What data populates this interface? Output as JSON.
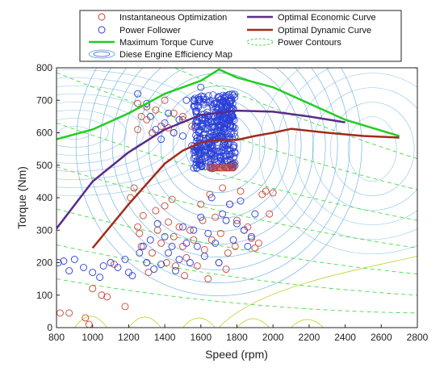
{
  "chart_data": {
    "type": "scatter",
    "xlabel": "Speed (rpm)",
    "ylabel": "Torque (Nm)",
    "xlim": [
      800,
      2800
    ],
    "ylim": [
      0,
      800
    ],
    "xticks": [
      800,
      1000,
      1200,
      1400,
      1600,
      1800,
      2000,
      2200,
      2400,
      2600,
      2800
    ],
    "yticks": [
      0,
      100,
      200,
      300,
      400,
      500,
      600,
      700,
      800
    ],
    "grid": false,
    "legend_position": "top",
    "colors": {
      "instantaneous_optimization": "#cc4433",
      "power_follower": "#2a3fd6",
      "maximum_torque": "#22cc22",
      "optimal_economic": "#5a2a8a",
      "optimal_dynamic": "#a32a1a",
      "power_contours": "#44dd44",
      "efficiency_map": "#4a9fd8",
      "efficiency_map_low": "#c8d030"
    },
    "legend": [
      {
        "id": "inst",
        "label": "Instantaneous Optimization",
        "kind": "marker",
        "color_key": "instantaneous_optimization"
      },
      {
        "id": "econ",
        "label": "Optimal Economic Curve",
        "kind": "line",
        "color_key": "optimal_economic"
      },
      {
        "id": "pf",
        "label": "Power Follower",
        "kind": "marker",
        "color_key": "power_follower"
      },
      {
        "id": "dyn",
        "label": "Optimal Dynamic Curve",
        "kind": "line",
        "color_key": "optimal_dynamic"
      },
      {
        "id": "maxt",
        "label": "Maximum Torque Curve",
        "kind": "line",
        "color_key": "maximum_torque"
      },
      {
        "id": "pc",
        "label": "Power Contours",
        "kind": "dashed-ellipse",
        "color_key": "power_contours"
      },
      {
        "id": "eff",
        "label": "Diese Engine Efficiency Map",
        "kind": "ellipses",
        "color_key": "efficiency_map"
      }
    ],
    "series": [
      {
        "id": "maximum_torque",
        "type": "line",
        "x": [
          800,
          1000,
          1200,
          1400,
          1600,
          1700,
          1800,
          2000,
          2200,
          2400,
          2700
        ],
        "y": [
          580,
          610,
          660,
          720,
          760,
          795,
          770,
          740,
          690,
          640,
          590
        ]
      },
      {
        "id": "optimal_economic",
        "type": "line",
        "x": [
          800,
          1000,
          1200,
          1400,
          1600,
          1800,
          2000,
          2200,
          2400
        ],
        "y": [
          305,
          450,
          540,
          610,
          655,
          668,
          665,
          650,
          632
        ]
      },
      {
        "id": "optimal_dynamic",
        "type": "line",
        "x": [
          1000,
          1200,
          1400,
          1500,
          1600,
          1700,
          1800,
          1900,
          2000,
          2100,
          2300,
          2500,
          2700
        ],
        "y": [
          245,
          380,
          505,
          545,
          570,
          578,
          578,
          590,
          600,
          612,
          600,
          590,
          585
        ]
      },
      {
        "id": "instantaneous_optimization",
        "type": "scatter",
        "x": [
          820,
          870,
          960,
          980,
          1000,
          1050,
          1080,
          1120,
          1180,
          1210,
          1230,
          1250,
          1260,
          1270,
          1280,
          1300,
          1310,
          1330,
          1350,
          1360,
          1380,
          1400,
          1410,
          1420,
          1440,
          1450,
          1460,
          1480,
          1500,
          1510,
          1520,
          1540,
          1560,
          1580,
          1600,
          1610,
          1620,
          1640,
          1650,
          1660,
          1680,
          1700,
          1710,
          1720,
          1740,
          1750,
          1760,
          1780,
          1790,
          1800,
          1820,
          1840,
          1860,
          1880,
          1900,
          1920,
          1940,
          1960,
          1980,
          2000,
          1250,
          1270,
          1300,
          1330,
          1380,
          1420,
          1450,
          1500,
          1250,
          1300,
          1350,
          1400,
          1450,
          1500,
          1550
        ],
        "y": [
          45,
          45,
          30,
          10,
          120,
          100,
          95,
          195,
          65,
          400,
          430,
          310,
          290,
          250,
          345,
          200,
          170,
          230,
          360,
          300,
          260,
          375,
          200,
          325,
          395,
          280,
          190,
          310,
          250,
          160,
          215,
          300,
          270,
          190,
          380,
          330,
          240,
          150,
          410,
          270,
          340,
          200,
          290,
          430,
          180,
          230,
          380,
          500,
          250,
          330,
          420,
          300,
          310,
          275,
          245,
          260,
          410,
          420,
          350,
          415,
          610,
          650,
          640,
          600,
          620,
          615,
          600,
          640,
          690,
          680,
          670,
          700,
          660,
          650,
          620
        ]
      },
      {
        "id": "power_follower",
        "type": "scatter",
        "x": [
          810,
          840,
          870,
          900,
          950,
          1000,
          1040,
          1060,
          1100,
          1140,
          1180,
          1200,
          1220,
          1260,
          1280,
          1300,
          1320,
          1340,
          1360,
          1380,
          1400,
          1420,
          1440,
          1460,
          1480,
          1500,
          1520,
          1540,
          1560,
          1580,
          1600,
          1620,
          1640,
          1660,
          1680,
          1700,
          1720,
          1740,
          1760,
          1780,
          1800,
          1820,
          1840,
          1860,
          1880,
          1900,
          1250,
          1300,
          1320,
          1350,
          1380,
          1400,
          1420,
          1450,
          1480,
          1500,
          1520,
          1550,
          1580,
          1600
        ],
        "y": [
          200,
          205,
          175,
          210,
          185,
          170,
          155,
          190,
          200,
          185,
          210,
          170,
          160,
          230,
          250,
          200,
          270,
          180,
          320,
          195,
          280,
          230,
          250,
          175,
          210,
          310,
          260,
          200,
          300,
          250,
          340,
          220,
          290,
          400,
          260,
          200,
          350,
          330,
          380,
          270,
          320,
          390,
          300,
          250,
          280,
          350,
          720,
          690,
          650,
          610,
          580,
          630,
          660,
          600,
          640,
          590,
          700,
          560,
          620,
          740
        ]
      }
    ],
    "dense_cluster": {
      "series_id": "power_follower",
      "x_range": [
        1560,
        1790
      ],
      "y_range": [
        490,
        720
      ]
    },
    "power_contours": [
      {
        "points": [
          [
            800,
            965
          ],
          [
            2800,
            520
          ]
        ]
      },
      {
        "points": [
          [
            800,
            785
          ],
          [
            2800,
            425
          ]
        ]
      },
      {
        "points": [
          [
            800,
            630
          ],
          [
            2800,
            330
          ]
        ]
      },
      {
        "points": [
          [
            800,
            495
          ],
          [
            2800,
            245
          ]
        ]
      },
      {
        "points": [
          [
            800,
            365
          ],
          [
            2800,
            165
          ]
        ]
      },
      {
        "points": [
          [
            800,
            255
          ],
          [
            2800,
            100
          ]
        ]
      },
      {
        "points": [
          [
            800,
            150
          ],
          [
            2800,
            45
          ]
        ]
      }
    ]
  }
}
